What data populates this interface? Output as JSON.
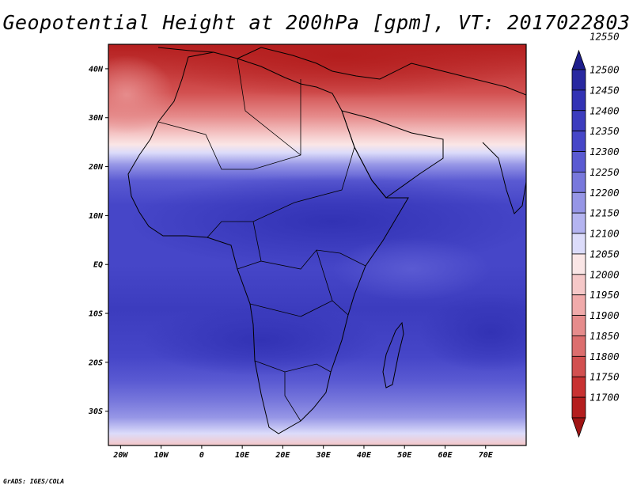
{
  "title": "Geopotential Height at 200hPa [gpm], VT: 2017022803",
  "credit": "GrADS: IGES/COLA",
  "map": {
    "lon_range": [
      -23,
      80
    ],
    "lat_range": [
      -37,
      45
    ],
    "lon_ticks": [
      {
        "value": -20,
        "label": "20W"
      },
      {
        "value": -10,
        "label": "10W"
      },
      {
        "value": 0,
        "label": "0"
      },
      {
        "value": 10,
        "label": "10E"
      },
      {
        "value": 20,
        "label": "20E"
      },
      {
        "value": 30,
        "label": "30E"
      },
      {
        "value": 40,
        "label": "40E"
      },
      {
        "value": 50,
        "label": "50E"
      },
      {
        "value": 60,
        "label": "60E"
      },
      {
        "value": 70,
        "label": "70E"
      }
    ],
    "lat_ticks": [
      {
        "value": 40,
        "label": "40N"
      },
      {
        "value": 30,
        "label": "30N"
      },
      {
        "value": 20,
        "label": "20N"
      },
      {
        "value": 10,
        "label": "10N"
      },
      {
        "value": 0,
        "label": "EQ"
      },
      {
        "value": -10,
        "label": "10S"
      },
      {
        "value": -20,
        "label": "20S"
      },
      {
        "value": -30,
        "label": "30S"
      }
    ]
  },
  "colorbar": {
    "levels": [
      12550,
      12500,
      12450,
      12400,
      12350,
      12300,
      12250,
      12200,
      12150,
      12100,
      12050,
      12000,
      11950,
      11900,
      11850,
      11800,
      11750,
      11700
    ],
    "colors": [
      "#1e1e8c",
      "#2828a0",
      "#3232b4",
      "#3c3cbe",
      "#4646c8",
      "#5a5ad2",
      "#7878dc",
      "#9696e6",
      "#b4b4f0",
      "#dcdcfa",
      "#fae6e6",
      "#f5c8c8",
      "#f0aaaa",
      "#e68c8c",
      "#dc6e6e",
      "#d25050",
      "#c83232",
      "#b41e1e",
      "#a01414"
    ]
  }
}
